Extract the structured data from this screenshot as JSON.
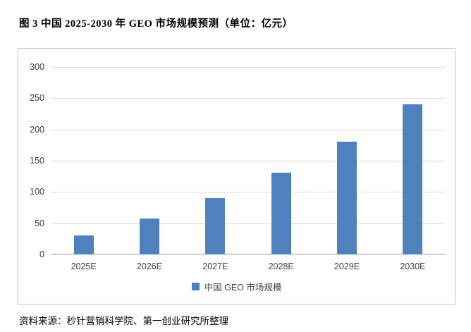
{
  "title": "图 3 中国 2025-2030 年 GEO 市场规模预测（单位：亿元）",
  "source": "资料来源：秒针营销科学院、第一创业研究所整理",
  "chart_data": {
    "type": "bar",
    "categories": [
      "2025E",
      "2026E",
      "2027E",
      "2028E",
      "2029E",
      "2030E"
    ],
    "series": [
      {
        "name": "中国 GEO 市场规模",
        "values": [
          30,
          57,
          90,
          131,
          181,
          240
        ]
      }
    ],
    "title": "中国 2025-2030 年 GEO 市场规模预测",
    "xlabel": "",
    "ylabel": "",
    "unit": "亿元",
    "ylim": [
      0,
      300
    ],
    "ytick_step": 50,
    "yticks": [
      0,
      50,
      100,
      150,
      200,
      250,
      300
    ],
    "grid": true,
    "legend_position": "bottom",
    "bar_color": "#4F81BD",
    "gridline_color": "#d9d9d9",
    "axis_color": "#9b9b9b"
  }
}
